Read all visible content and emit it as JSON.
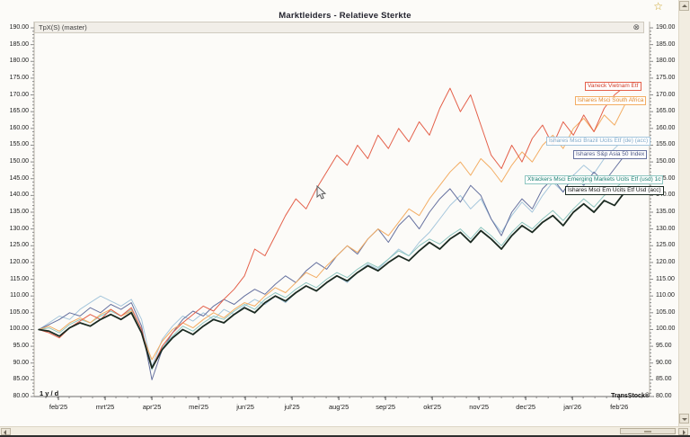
{
  "window": {
    "title": "Marktleiders - Relatieve Sterkte",
    "star_icon": "☆"
  },
  "pane": {
    "label": "TpX(S) (master)",
    "close_icon": "⊗"
  },
  "footer": {
    "period": "1 y / d",
    "brand": "TransStock®"
  },
  "chart_data": {
    "type": "line",
    "title": "Marktleiders - Relatieve Sterkte",
    "grid": false,
    "x_axis": {
      "unit": "months",
      "t_min": 0,
      "t_max": 13.17,
      "first_tick_t": 0.52,
      "tick_spacing_t": 1.0,
      "minor_step_t": 0.25,
      "tick_labels": [
        "feb'25",
        "mrt'25",
        "apr'25",
        "mei'25",
        "jun'25",
        "jul'25",
        "aug'25",
        "sep'25",
        "okt'25",
        "nov'25",
        "dec'25",
        "jan'26",
        "feb'26"
      ]
    },
    "y_axis": {
      "min": 80,
      "max": 190,
      "major_step": 5,
      "minor_step": 1,
      "decimals": 2
    },
    "series": [
      {
        "name": "Ishares Msci Brazil Ucits Etf (de) (acc)",
        "color": "#a5c6dc",
        "label_color": "#7fa8c8",
        "width": 1,
        "start_t": 0.1,
        "dt": 0.22,
        "label_pos": [
          608,
          152
        ],
        "values": [
          100,
          102,
          104,
          103,
          106,
          108,
          110,
          108.5,
          107,
          109,
          103,
          89,
          97,
          101,
          104,
          102.5,
          105,
          103,
          106,
          104.5,
          107,
          109,
          107.5,
          110,
          108,
          111,
          113,
          111.5,
          114,
          116,
          114,
          117,
          119.5,
          118,
          121,
          124,
          122,
          126,
          129,
          133,
          137,
          140,
          136,
          139,
          133,
          129,
          134,
          138,
          135,
          140,
          144,
          141,
          146,
          149,
          146.5,
          151,
          154,
          157
        ]
      },
      {
        "name": "Ishares S&p Asia 50 Index",
        "color": "#66719f",
        "label_color": "#4a5584",
        "width": 1,
        "start_t": 0.1,
        "dt": 0.22,
        "label_pos": [
          638,
          167
        ],
        "values": [
          100,
          101.5,
          103,
          105,
          104,
          106.5,
          105,
          107.5,
          106,
          108,
          101,
          85,
          94,
          99,
          103,
          105.5,
          104,
          107,
          109,
          107.5,
          110,
          112,
          110.5,
          113.5,
          116,
          114,
          117.5,
          120,
          118,
          122,
          125,
          122.5,
          127,
          130,
          126,
          131,
          134,
          130,
          135,
          139,
          142,
          138,
          143,
          140,
          133,
          128,
          135,
          139,
          136,
          142,
          145,
          141,
          146,
          143,
          147,
          144,
          148,
          152
        ]
      },
      {
        "name": "Xtrackers Msci Emerging Markets Ucits Etf (usd) 1c",
        "color": "#8ec6c0",
        "label_color": "#157d6e",
        "width": 1,
        "start_t": 0.1,
        "dt": 0.22,
        "label_pos": [
          584,
          195
        ],
        "values": [
          100,
          100.5,
          99,
          101.5,
          103,
          102,
          104,
          105.5,
          104,
          106,
          100,
          88,
          94.5,
          98,
          101,
          99.5,
          102,
          104,
          103,
          105.5,
          107.5,
          106,
          109,
          111,
          109.5,
          112,
          114,
          112.5,
          115,
          117,
          115.5,
          118,
          120,
          118.5,
          121,
          123.5,
          122,
          125,
          127,
          125.5,
          128,
          130,
          127,
          130.5,
          128,
          125,
          129,
          132,
          130,
          133,
          135.5,
          132.5,
          136,
          139,
          136.5,
          140,
          142,
          144.5
        ]
      },
      {
        "name": "Ishares Msci South Africa",
        "color": "#f3ad63",
        "label_color": "#e08a2e",
        "width": 1,
        "start_t": 0.1,
        "dt": 0.22,
        "label_pos": [
          640,
          107
        ],
        "values": [
          100,
          101,
          99.5,
          102,
          103.5,
          102,
          104.5,
          106,
          104,
          105.5,
          99,
          91,
          96.5,
          100,
          102,
          100.5,
          103,
          105,
          103.5,
          106,
          108,
          107,
          110,
          112.5,
          111,
          114,
          117,
          115.5,
          119,
          122,
          125,
          123,
          127,
          130,
          128,
          132,
          136,
          134,
          139,
          143,
          147,
          150,
          146,
          151,
          148,
          144,
          149,
          153,
          150,
          155,
          158,
          154,
          160,
          163,
          159,
          164,
          161,
          167
        ]
      },
      {
        "name": "Vaneck Vietnam Etf",
        "color": "#e4604a",
        "label_color": "#d23f2a",
        "width": 1,
        "start_t": 0.1,
        "dt": 0.22,
        "label_pos": [
          651,
          91
        ],
        "values": [
          100,
          99,
          97.5,
          100.5,
          102.5,
          104.5,
          103,
          106,
          104,
          106.5,
          100,
          88.5,
          95,
          99,
          102,
          104.5,
          107,
          105.5,
          109,
          112,
          116,
          124,
          122,
          128,
          134,
          139,
          136,
          142,
          147,
          152,
          149,
          155,
          151,
          158,
          154,
          160,
          156,
          162,
          158,
          166,
          172,
          165,
          170,
          161,
          152,
          148,
          155,
          150,
          157,
          161,
          155,
          162,
          158,
          164,
          159,
          166,
          170,
          172.5
        ]
      },
      {
        "name": "Ishares Msci Em Ucits Etf Usd (acc)",
        "color": "#1b2a21",
        "label_color": "#111111",
        "width": 1.8,
        "start_t": 0.1,
        "dt": 0.22,
        "label_pos": [
          629,
          207
        ],
        "values": [
          100,
          99.5,
          98,
          100.5,
          102,
          101,
          103,
          104.5,
          103,
          105,
          99,
          88.5,
          94,
          97.5,
          100,
          98.5,
          101,
          103,
          102,
          104.5,
          106.5,
          105,
          108,
          110,
          108.5,
          111,
          113,
          111.5,
          114,
          116,
          114.5,
          117,
          119,
          117.5,
          120,
          122,
          120.5,
          123.5,
          126,
          124,
          127,
          129,
          126,
          129.5,
          127,
          124,
          128,
          131,
          129,
          132,
          134,
          131,
          135,
          137.5,
          135,
          138.5,
          137,
          141
        ]
      }
    ]
  }
}
